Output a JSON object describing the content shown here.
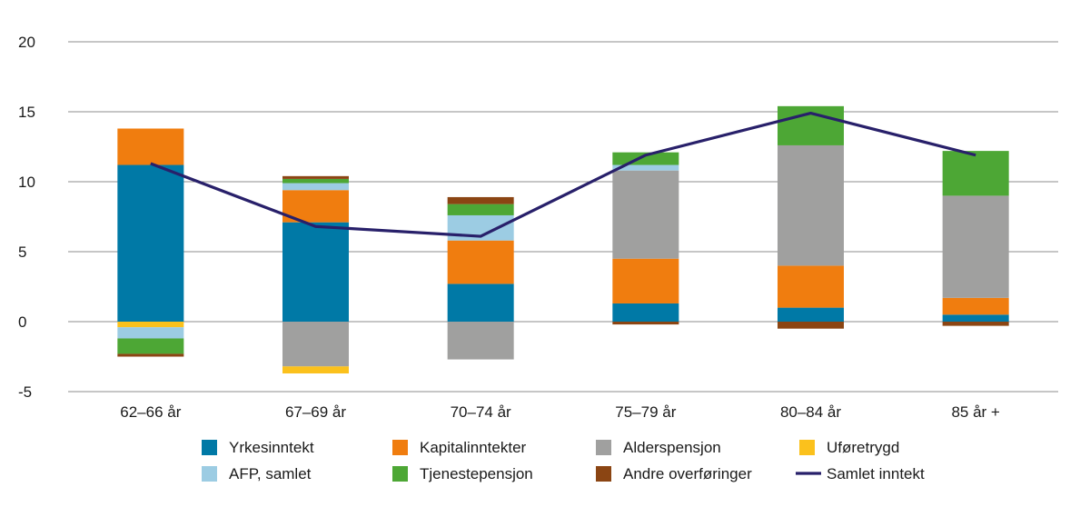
{
  "chart_data": {
    "type": "bar",
    "stacked": true,
    "title": "",
    "xlabel": "",
    "ylabel": "",
    "ylim": [
      -5,
      20
    ],
    "yticks": [
      -5,
      0,
      5,
      10,
      15,
      20
    ],
    "yticklabels": [
      "-5",
      "0",
      "5",
      "10",
      "15",
      "20"
    ],
    "grid": true,
    "legend_position": "bottom",
    "categories": [
      "62–66 år",
      "67–69 år",
      "70–74 år",
      "75–79 år",
      "80–84 år",
      "85 år +"
    ],
    "series": [
      {
        "name": "Yrkesinntekt",
        "color": "#0079a6",
        "values": [
          11.2,
          7.1,
          2.7,
          1.3,
          1.0,
          0.5
        ]
      },
      {
        "name": "Kapitalinntekter",
        "color": "#f07d0f",
        "values": [
          2.6,
          2.3,
          3.1,
          3.2,
          3.0,
          1.2
        ]
      },
      {
        "name": "Alderspensjon",
        "color": "#a0a09f",
        "values": [
          0,
          -3.2,
          -2.7,
          6.3,
          8.6,
          7.3
        ]
      },
      {
        "name": "Uføretrygd",
        "color": "#fbc11c",
        "values": [
          -0.4,
          -0.5,
          0,
          0,
          0,
          0
        ]
      },
      {
        "name": "AFP, samlet",
        "color": "#9ccce3",
        "values": [
          -0.8,
          0.5,
          1.8,
          0.4,
          0,
          0
        ]
      },
      {
        "name": "Tjenestepensjon",
        "color": "#4da735",
        "values": [
          -1.1,
          0.3,
          0.8,
          0.9,
          2.8,
          3.2
        ]
      },
      {
        "name": "Andre overføringer",
        "color": "#8b4513",
        "values": [
          -0.2,
          0.2,
          0.5,
          -0.2,
          -0.5,
          -0.3
        ]
      }
    ],
    "line": {
      "name": "Samlet inntekt",
      "color": "#28206a",
      "values": [
        11.3,
        6.8,
        6.1,
        11.9,
        14.9,
        11.9
      ]
    }
  }
}
